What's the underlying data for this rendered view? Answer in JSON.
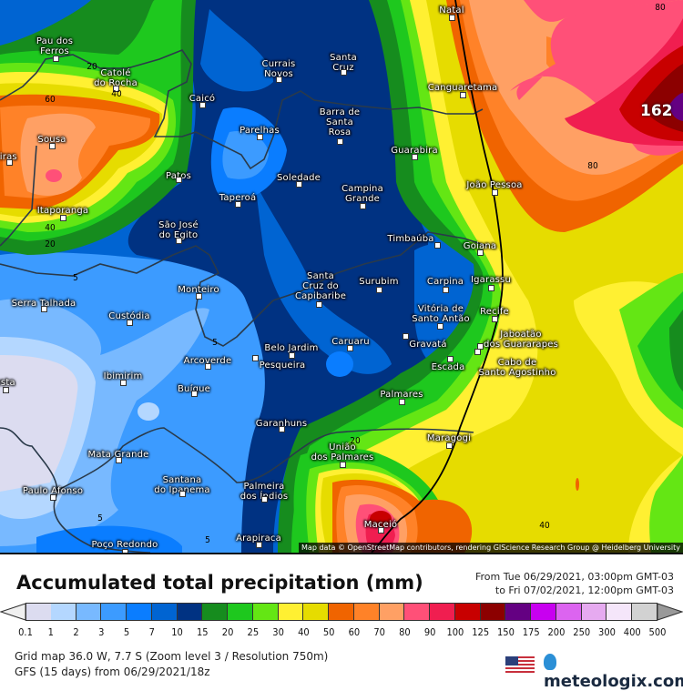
{
  "map": {
    "cities": [
      {
        "name": "Pau dos\nFerros"
      },
      {
        "name": "Catolé\ndo Rocha"
      },
      {
        "name": "Caicó"
      },
      {
        "name": "Currais\nNovos"
      },
      {
        "name": "Santa\nCruz"
      },
      {
        "name": "Natal"
      },
      {
        "name": "Canguaretama"
      },
      {
        "name": "Barra de\nSanta\nRosa"
      },
      {
        "name": "Parelhas"
      },
      {
        "name": "Sousa"
      },
      {
        "name": "Cajazeiras"
      },
      {
        "name": "Patos"
      },
      {
        "name": "Soledade"
      },
      {
        "name": "Guarabira"
      },
      {
        "name": "João Pessoa"
      },
      {
        "name": "Campina\nGrande"
      },
      {
        "name": "Taperoá"
      },
      {
        "name": "Itaporanga"
      },
      {
        "name": "São José\ndo Egito"
      },
      {
        "name": "Timbaúba"
      },
      {
        "name": "Goiana"
      },
      {
        "name": "Surubim"
      },
      {
        "name": "Carpina"
      },
      {
        "name": "Igarassu"
      },
      {
        "name": "Monteiro"
      },
      {
        "name": "Santa\nCruz do\nCapibaribe"
      },
      {
        "name": "Serra Talhada"
      },
      {
        "name": "Custódia"
      },
      {
        "name": "Vitória de\nSanto Antão"
      },
      {
        "name": "Recife"
      },
      {
        "name": "Jaboatão\ndos Guararapes"
      },
      {
        "name": "Caruaru"
      },
      {
        "name": "Belo Jardim"
      },
      {
        "name": "Pesqueira"
      },
      {
        "name": "Gravatá"
      },
      {
        "name": "Arcoverde"
      },
      {
        "name": "Cabo de\nSanto Agostinho"
      },
      {
        "name": "Escada"
      },
      {
        "name": "Ibimirim"
      },
      {
        "name": "Buíque"
      },
      {
        "name": "Palmares"
      },
      {
        "name": "Garanhuns"
      },
      {
        "name": "Maragogi"
      },
      {
        "name": "União\ndos Palmares"
      },
      {
        "name": "Mata Grande"
      },
      {
        "name": "Santana\ndo Ipanema"
      },
      {
        "name": "Paulo Afonso"
      },
      {
        "name": "Palmeira\ndos Índios"
      },
      {
        "name": "Arapiraca"
      },
      {
        "name": "Poço Redondo"
      },
      {
        "name": "Maceió"
      },
      {
        "name": "Floresta"
      }
    ],
    "contour_labels": [
      "20",
      "60",
      "40",
      "40",
      "20",
      "5",
      "5",
      "5",
      "5",
      "80",
      "80",
      "40",
      "20"
    ],
    "max_value": "162",
    "attribution": "Map data © OpenStreetMap contributors, rendering GIScience Research Group @ Heidelberg University"
  },
  "footer": {
    "title": "Accumulated total precipitation (mm)",
    "period_from": "From Tue 06/29/2021, 03:00pm GMT-03",
    "period_to": "to Fri 07/02/2021, 12:00pm GMT-03",
    "grid_info": "Grid map 36.0 W, 7.7 S (Zoom level 3 / Resolution 750m)",
    "model_info": "GFS (15 days) from 06/29/2021/18z",
    "logo_text": "meteologix.com",
    "flag_icon": "us-flag-icon"
  },
  "legend": {
    "labels": [
      "0.1",
      "1",
      "2",
      "3",
      "5",
      "7",
      "10",
      "15",
      "20",
      "25",
      "30",
      "40",
      "50",
      "60",
      "70",
      "80",
      "90",
      "100",
      "125",
      "150",
      "175",
      "200",
      "250",
      "300",
      "400",
      "500"
    ],
    "colors": [
      "#dcdcf0",
      "#b4d7ff",
      "#78b9ff",
      "#3c9bff",
      "#0a7dff",
      "#0064d2",
      "#003282",
      "#168c1e",
      "#1ec81e",
      "#64e614",
      "#fff032",
      "#e6dc00",
      "#f06400",
      "#ff8228",
      "#ffa064",
      "#ff5078",
      "#f01e50",
      "#c80000",
      "#8c0000",
      "#640082",
      "#c800f0",
      "#dc64f0",
      "#e6aaf0",
      "#f5e6fa",
      "#d2d2d2"
    ],
    "under_color": "#f0f0f0",
    "over_color": "#999999"
  }
}
